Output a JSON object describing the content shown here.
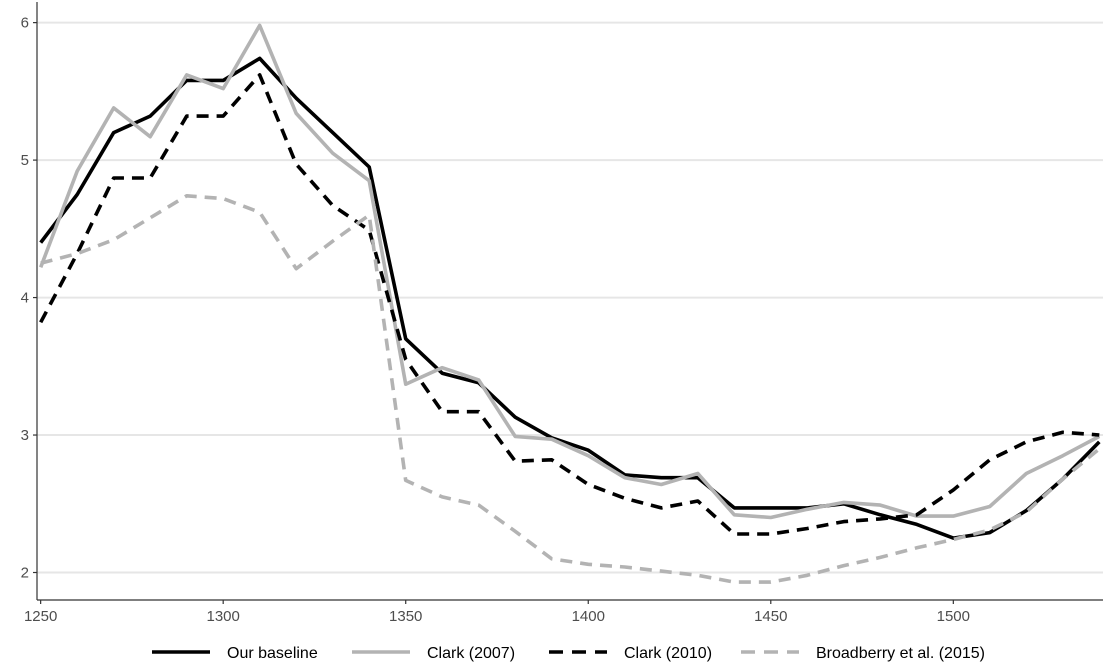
{
  "chart_data": {
    "type": "line",
    "title": "",
    "xlabel": "",
    "ylabel": "",
    "xlim": [
      1249,
      1541
    ],
    "ylim": [
      1.8,
      6.15
    ],
    "x_ticks": [
      1250,
      1300,
      1350,
      1400,
      1450,
      1500
    ],
    "y_ticks": [
      2,
      3,
      4,
      5,
      6
    ],
    "grid": "horizontal",
    "legend_position": "bottom",
    "x": [
      1250,
      1260,
      1270,
      1280,
      1290,
      1300,
      1310,
      1320,
      1330,
      1340,
      1350,
      1360,
      1370,
      1380,
      1390,
      1400,
      1410,
      1420,
      1430,
      1440,
      1450,
      1460,
      1470,
      1480,
      1490,
      1500,
      1510,
      1520,
      1530,
      1540
    ],
    "series": [
      {
        "name": "Our baseline",
        "color": "#000000",
        "dash": "solid",
        "values": [
          4.4,
          4.75,
          5.2,
          5.32,
          5.58,
          5.58,
          5.74,
          5.45,
          5.2,
          4.95,
          3.7,
          3.45,
          3.38,
          3.13,
          2.98,
          2.89,
          2.71,
          2.69,
          2.69,
          2.47,
          2.47,
          2.47,
          2.5,
          2.42,
          2.35,
          2.25,
          2.29,
          2.45,
          2.68,
          2.95
        ]
      },
      {
        "name": "Clark (2007)",
        "color": "#b3b3b3",
        "dash": "solid",
        "values": [
          4.22,
          4.92,
          5.38,
          5.17,
          5.62,
          5.52,
          5.98,
          5.34,
          5.05,
          4.85,
          3.37,
          3.49,
          3.4,
          2.99,
          2.97,
          2.85,
          2.69,
          2.64,
          2.72,
          2.42,
          2.4,
          2.46,
          2.51,
          2.49,
          2.41,
          2.41,
          2.48,
          2.72,
          2.85,
          2.99
        ]
      },
      {
        "name": "Clark (2010)",
        "color": "#000000",
        "dash": "dashed",
        "values": [
          3.82,
          4.32,
          4.87,
          4.87,
          5.32,
          5.32,
          5.62,
          4.97,
          4.67,
          4.49,
          3.55,
          3.17,
          3.17,
          2.81,
          2.82,
          2.64,
          2.54,
          2.47,
          2.52,
          2.28,
          2.28,
          2.32,
          2.37,
          2.39,
          2.42,
          2.6,
          2.82,
          2.95,
          3.02,
          3.0
        ]
      },
      {
        "name": "Broadberry et al. (2015)",
        "color": "#b3b3b3",
        "dash": "dashed",
        "values": [
          4.25,
          4.32,
          4.42,
          4.58,
          4.74,
          4.72,
          4.62,
          4.21,
          4.41,
          4.6,
          2.67,
          2.55,
          2.49,
          2.3,
          2.1,
          2.06,
          2.04,
          2.01,
          1.98,
          1.93,
          1.93,
          1.98,
          2.05,
          2.11,
          2.18,
          2.24,
          2.31,
          2.44,
          2.68,
          2.9
        ]
      }
    ]
  }
}
